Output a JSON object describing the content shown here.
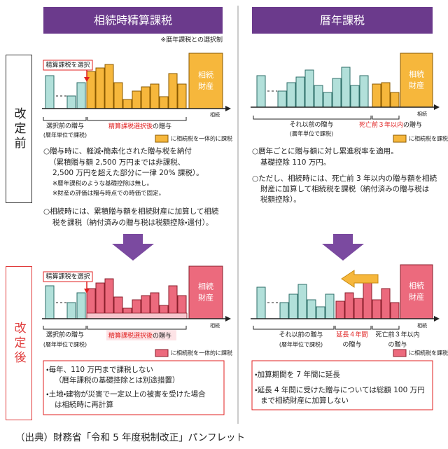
{
  "columns": {
    "left": {
      "title": "相続時精算課税",
      "note": "※暦年課税との選択制"
    },
    "right": {
      "title": "暦年課税"
    }
  },
  "rows": {
    "before": "改定前",
    "after": "改定後"
  },
  "before": {
    "left_diagram": {
      "callout": "精算課税を選択",
      "estate": [
        "相続",
        "財産"
      ],
      "axis": "相続",
      "pre_label": "選択前の贈与",
      "pre_sub": "(暦年単位で課税)",
      "post_label_red": "精算課税選択後",
      "post_label": "の贈与",
      "legend": "に相続税を一体的に課税"
    },
    "right_diagram": {
      "estate": [
        "相続",
        "財産"
      ],
      "axis": "相続",
      "pre_label": "それ以前の贈与",
      "pre_sub": "(暦年単位で課税)",
      "post_label_red": "死亡前３年以内",
      "post_label": "の贈与",
      "legend": "に相続税を課税"
    },
    "left_text": [
      "○贈与時に、軽減・簡素化された贈与税を納付",
      "（累積贈与額 2,500 万円までは非課税、",
      "2,500 万円を超えた部分に一律 20% 課税）。",
      "※暦年課税のような基礎控除は無し。",
      "※財産の評価は贈与時点での時価で固定。",
      "○相続時には、累積贈与額を相続財産に加算して相続",
      "税を課税（納付済みの贈与税は税額控除・還付）。"
    ],
    "right_text": [
      "○暦年ごとに贈与額に対し累進税率を適用。",
      "基礎控除 110 万円。",
      "○ただし、相続時には、死亡前 3 年以内の贈与額を相続",
      "財産に加算して相続税を課税（納付済みの贈与税は",
      "税額控除）。"
    ]
  },
  "after": {
    "left_diagram": {
      "callout": "精算課税を選択",
      "estate": [
        "相続",
        "財産"
      ],
      "axis": "相続",
      "pre_label": "選択前の贈与",
      "pre_sub": "(暦年単位で課税)",
      "post_label_red": "精算課税選択後",
      "post_label": "の贈与",
      "legend": "に相続税を一体的に課税"
    },
    "right_diagram": {
      "estate": [
        "相続",
        "財産"
      ],
      "axis": "相続",
      "pre_label": "それ以前の贈与",
      "pre_sub": "(暦年単位で課税)",
      "ext_label": "延長４年間",
      "ext_sub": "の贈与",
      "post_label": "死亡前３年以内",
      "post_sub": "の贈与",
      "legend": "に相続税を課税"
    },
    "left_box": [
      "・毎年、110 万円まで課税しない",
      "（暦年課税の基礎控除とは別途措置）",
      "・土地・建物が災害で一定以上の被害を受けた場合",
      "は相続時に再計算"
    ],
    "right_box": [
      "・加算期間を 7 年間に延長",
      "・延長 4 年間に受けた贈与については総額 100 万円",
      "まで相続財産に加算しない"
    ]
  },
  "source": "（出典）財務省「令和 5 年度税制改正」パンフレット"
}
